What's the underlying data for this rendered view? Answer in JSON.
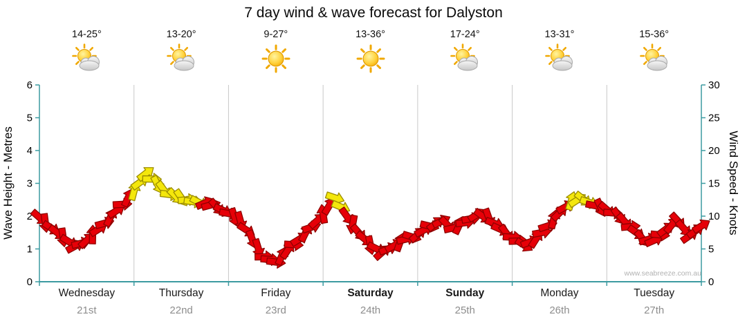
{
  "title": "7 day wind & wave forecast for Dalyston",
  "watermark": "www.seabreeze.com.au",
  "days": [
    {
      "name": "Wednesday",
      "date": "21st",
      "temp": "14-25°",
      "icon": "sun-cloud",
      "bold": false
    },
    {
      "name": "Thursday",
      "date": "22nd",
      "temp": "13-20°",
      "icon": "sun-cloud",
      "bold": false
    },
    {
      "name": "Friday",
      "date": "23rd",
      "temp": "9-27°",
      "icon": "sun",
      "bold": false
    },
    {
      "name": "Saturday",
      "date": "24th",
      "temp": "13-36°",
      "icon": "sun",
      "bold": true
    },
    {
      "name": "Sunday",
      "date": "25th",
      "temp": "17-24°",
      "icon": "sun-cloud",
      "bold": true
    },
    {
      "name": "Monday",
      "date": "26th",
      "temp": "13-31°",
      "icon": "sun-cloud",
      "bold": false
    },
    {
      "name": "Tuesday",
      "date": "27th",
      "temp": "15-36°",
      "icon": "sun-cloud",
      "bold": false
    }
  ],
  "colors": {
    "arrow_red": "#e60008",
    "arrow_red_outline": "#8f0000",
    "arrow_yellow": "#f4e70c",
    "arrow_yellow_outline": "#9b8c00",
    "axis": "#3b9aa0",
    "grid": "#c8c8c8"
  },
  "chart_data": {
    "type": "line",
    "title": "7 day wind & wave forecast for Dalyston",
    "x_categories_days": [
      "Wednesday 21st",
      "Thursday 22nd",
      "Friday 23rd",
      "Saturday 24th",
      "Sunday 25th",
      "Monday 26th",
      "Tuesday 27th"
    ],
    "points_per_day": 8,
    "left_axis": {
      "label": "Wave Height - Metres",
      "range": [
        0,
        6
      ],
      "ticks": [
        0,
        1,
        2,
        3,
        4,
        5,
        6
      ]
    },
    "right_axis": {
      "label": "Wind Speed - Knots",
      "range": [
        0,
        30
      ],
      "ticks": [
        0,
        5,
        10,
        15,
        20,
        25,
        30
      ]
    },
    "note": "single wind-arrow band plotted against both axes (1 m wave = 5 knots scale alignment); r = red arrow, y = yellow arrow",
    "series": [
      {
        "name": "Wind speed (knots)",
        "values": [
          9.8,
          8.2,
          6.8,
          5.4,
          6.3,
          8.0,
          9.8,
          11.8,
          13.8,
          16.5,
          14.8,
          13.3,
          12.8,
          12.2,
          12.0,
          11.4,
          10.4,
          9.3,
          6.5,
          3.8,
          3.0,
          4.8,
          6.5,
          8.3,
          10.3,
          12.8,
          10.0,
          7.5,
          5.6,
          4.5,
          5.5,
          6.5,
          7.2,
          8.5,
          9.2,
          8.2,
          9.0,
          10.2,
          9.8,
          8.0,
          6.8,
          5.6,
          6.5,
          8.5,
          10.5,
          12.3,
          12.6,
          11.6,
          11.0,
          10.0,
          8.4,
          6.6,
          6.3,
          8.0,
          9.3,
          7.0,
          8.5
        ],
        "colors": [
          "r",
          "r",
          "r",
          "r",
          "r",
          "r",
          "r",
          "r",
          "y",
          "y",
          "y",
          "y",
          "y",
          "y",
          "r",
          "r",
          "r",
          "r",
          "r",
          "r",
          "r",
          "r",
          "r",
          "r",
          "r",
          "y",
          "r",
          "r",
          "r",
          "r",
          "r",
          "r",
          "r",
          "r",
          "r",
          "r",
          "r",
          "r",
          "r",
          "r",
          "r",
          "r",
          "r",
          "r",
          "r",
          "y",
          "y",
          "r",
          "r",
          "r",
          "r",
          "r",
          "r",
          "r",
          "r",
          "r",
          "r"
        ]
      }
    ]
  }
}
